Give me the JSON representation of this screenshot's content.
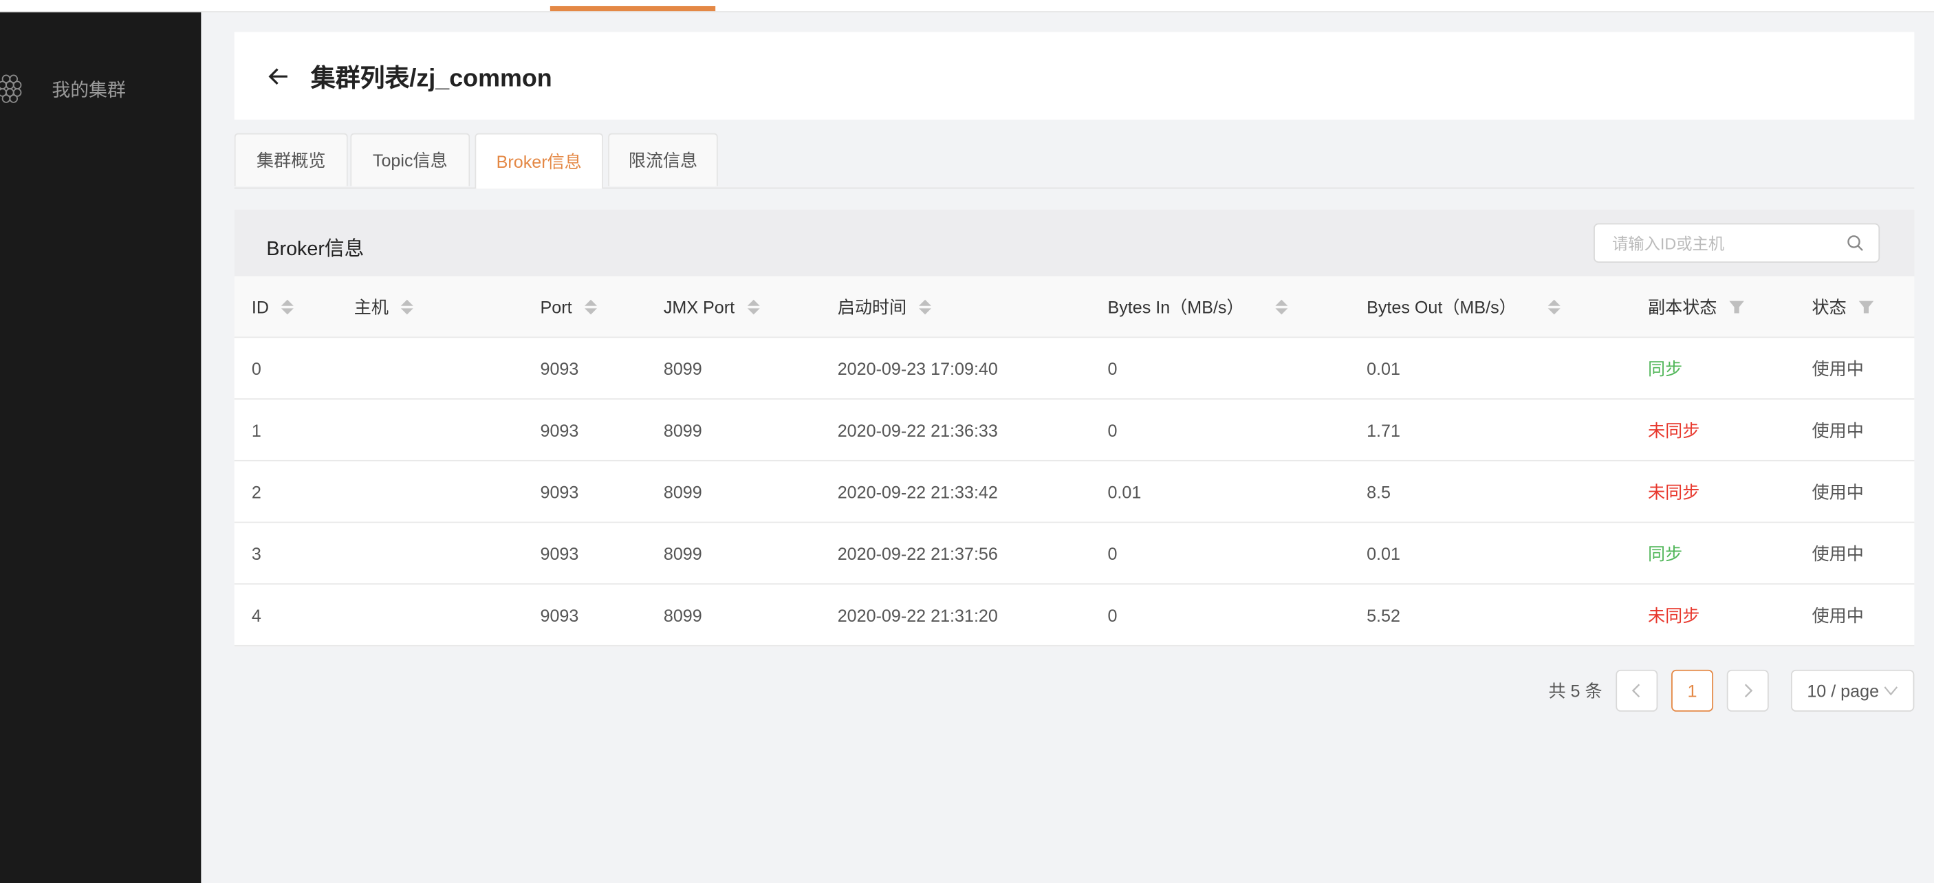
{
  "sidebar": {
    "items": [
      {
        "label": "我的集群",
        "icon": "cluster-hexagon-icon"
      }
    ]
  },
  "header": {
    "title": "集群列表/zj_common"
  },
  "tabs": [
    {
      "label": "集群概览"
    },
    {
      "label": "Topic信息"
    },
    {
      "label": "Broker信息",
      "active": true
    },
    {
      "label": "限流信息"
    }
  ],
  "card": {
    "title": "Broker信息",
    "search_placeholder": "请输入ID或主机",
    "search_value": ""
  },
  "table": {
    "columns": [
      "ID",
      "主机",
      "Port",
      "JMX Port",
      "启动时间",
      "Bytes In（MB/s）",
      "Bytes Out（MB/s）",
      "副本状态",
      "状态"
    ],
    "rows": [
      {
        "id": "0",
        "host": "",
        "port": "9093",
        "jmx": "8099",
        "start": "2020-09-23 17:09:40",
        "in": "0",
        "out": "0.01",
        "replica": "同步",
        "replica_ok": true,
        "status": "使用中"
      },
      {
        "id": "1",
        "host": "",
        "port": "9093",
        "jmx": "8099",
        "start": "2020-09-22 21:36:33",
        "in": "0",
        "out": "1.71",
        "replica": "未同步",
        "replica_ok": false,
        "status": "使用中"
      },
      {
        "id": "2",
        "host": "",
        "port": "9093",
        "jmx": "8099",
        "start": "2020-09-22 21:33:42",
        "in": "0.01",
        "out": "8.5",
        "replica": "未同步",
        "replica_ok": false,
        "status": "使用中"
      },
      {
        "id": "3",
        "host": "",
        "port": "9093",
        "jmx": "8099",
        "start": "2020-09-22 21:37:56",
        "in": "0",
        "out": "0.01",
        "replica": "同步",
        "replica_ok": true,
        "status": "使用中"
      },
      {
        "id": "4",
        "host": "",
        "port": "9093",
        "jmx": "8099",
        "start": "2020-09-22 21:31:20",
        "in": "0",
        "out": "5.52",
        "replica": "未同步",
        "replica_ok": false,
        "status": "使用中"
      }
    ]
  },
  "pagination": {
    "total_label": "共 5 条",
    "current": "1",
    "page_size": "10 / page"
  },
  "colors": {
    "accent": "#e48845",
    "ok": "#52b75a",
    "error": "#e8392e",
    "sidebar": "#1a1a1a"
  }
}
